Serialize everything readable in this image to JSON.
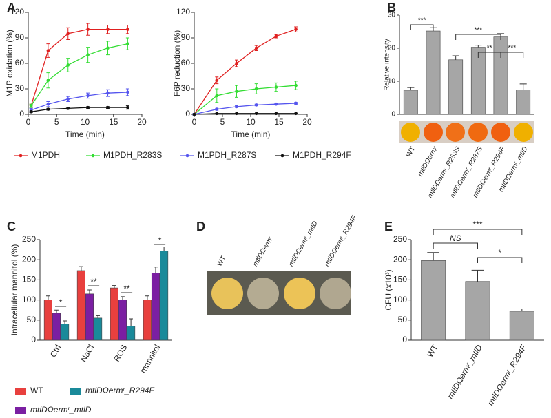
{
  "chart_data": [
    {
      "type": "line",
      "panel": "A",
      "y_label": "M1P oxidation (%)",
      "x_label": "Time (min)",
      "xlim": [
        0,
        20
      ],
      "xticks": [
        0,
        5,
        10,
        15,
        20
      ],
      "ylim": [
        0,
        120
      ],
      "yticks": [
        0,
        30,
        60,
        90,
        120
      ],
      "x": [
        0.5,
        3.5,
        7,
        10.5,
        14,
        17.5
      ],
      "series": [
        {
          "name": "M1PDH",
          "color": "#e02020",
          "values": [
            10,
            75,
            95,
            100,
            100,
            100
          ],
          "errors": [
            2,
            8,
            7,
            7,
            5,
            5
          ]
        },
        {
          "name": "M1PDH_R283S",
          "color": "#33dd33",
          "values": [
            10,
            40,
            58,
            70,
            78,
            83
          ],
          "errors": [
            2,
            9,
            8,
            9,
            8,
            7
          ]
        },
        {
          "name": "M1PDH_R287S",
          "color": "#5555ee",
          "values": [
            5,
            12,
            18,
            22,
            25,
            26
          ],
          "errors": [
            2,
            3,
            3,
            3,
            4,
            4
          ]
        },
        {
          "name": "M1PDH_R294F",
          "color": "#111111",
          "values": [
            3,
            6,
            7,
            8,
            8,
            8
          ],
          "errors": [
            1,
            1,
            1,
            1,
            1,
            2
          ]
        }
      ]
    },
    {
      "type": "line",
      "y_label": "F6P reduction (%)",
      "x_label": "Time (min)",
      "xlim": [
        0,
        20
      ],
      "xticks": [
        0,
        5,
        10,
        15,
        20
      ],
      "ylim": [
        0,
        120
      ],
      "yticks": [
        0,
        30,
        60,
        90,
        120
      ],
      "x": [
        0,
        4,
        7.5,
        11,
        14.5,
        18
      ],
      "series": [
        {
          "color": "#e02020",
          "values": [
            0,
            40,
            60,
            78,
            92,
            100
          ],
          "errors": [
            1,
            4,
            4,
            3,
            2,
            3
          ]
        },
        {
          "color": "#33dd33",
          "values": [
            0,
            22,
            27,
            30,
            32,
            34
          ],
          "errors": [
            1,
            8,
            7,
            6,
            5,
            5
          ]
        },
        {
          "color": "#5555ee",
          "values": [
            0,
            6,
            9,
            11,
            12,
            13
          ],
          "errors": [
            1,
            1,
            1,
            1,
            1,
            1
          ]
        },
        {
          "color": "#111111",
          "values": [
            0,
            1,
            1,
            1,
            1,
            1
          ],
          "errors": [
            0,
            0,
            0,
            0,
            0,
            0
          ]
        }
      ]
    },
    {
      "type": "bar",
      "panel": "B",
      "y_label": "Relative intensity",
      "ylim": [
        0,
        30
      ],
      "yticks": [
        0,
        10,
        20,
        30
      ],
      "color": "#a6a6a6",
      "categories": [
        "WT",
        "mtlDΩermʳ",
        "mtlDΩermʳ_R283S",
        "mtlDΩermʳ_R287S",
        "mtlDΩermʳ_R294F",
        "mtlDΩermʳ_mtlD"
      ],
      "values": [
        7.3,
        25.2,
        16.5,
        20.3,
        23.4,
        7.4
      ],
      "errors": [
        0.8,
        1.0,
        1.2,
        0.6,
        1.0,
        1.8
      ],
      "annotations": [
        "***",
        "***",
        "**",
        "***"
      ]
    },
    {
      "type": "bar",
      "panel": "C",
      "y_label": "Intracellular mannitol (%)",
      "ylim": [
        0,
        250
      ],
      "yticks": [
        0,
        50,
        100,
        150,
        200,
        250
      ],
      "categories": [
        "Ctrl",
        "NaCl",
        "ROS",
        "mannitol"
      ],
      "series": [
        {
          "name": "WT",
          "color": "#e8403e",
          "values": [
            100,
            173,
            130,
            100
          ],
          "errors": [
            10,
            10,
            6,
            10
          ]
        },
        {
          "name": "mtlDΩermʳ_mtlD",
          "color": "#7b1fa2",
          "values": [
            67,
            115,
            100,
            167
          ],
          "errors": [
            8,
            10,
            8,
            15
          ]
        },
        {
          "name": "mtlDΩermʳ_R294F",
          "color": "#1a8a9a",
          "values": [
            40,
            55,
            35,
            222
          ],
          "errors": [
            8,
            6,
            18,
            10
          ]
        }
      ],
      "annotations": [
        "*",
        "**",
        "**",
        "*"
      ]
    },
    {
      "type": "image",
      "panel": "D",
      "labels": [
        "WT",
        "mtlDΩermʳ",
        "mtlDΩermʳ_mtlD",
        "mtlDΩermʳ_R294F"
      ]
    },
    {
      "type": "bar",
      "panel": "E",
      "y_label": "CFU (x10³)",
      "ylim": [
        0,
        250
      ],
      "yticks": [
        0,
        50,
        100,
        150,
        200,
        250
      ],
      "color": "#a6a6a6",
      "categories": [
        "WT",
        "mtlDΩermʳ_mtlD",
        "mtlDΩermʳ_R294F"
      ],
      "values": [
        198,
        146,
        72
      ],
      "errors": [
        20,
        28,
        6
      ],
      "annotations": [
        "***",
        "NS",
        "*"
      ]
    }
  ]
}
